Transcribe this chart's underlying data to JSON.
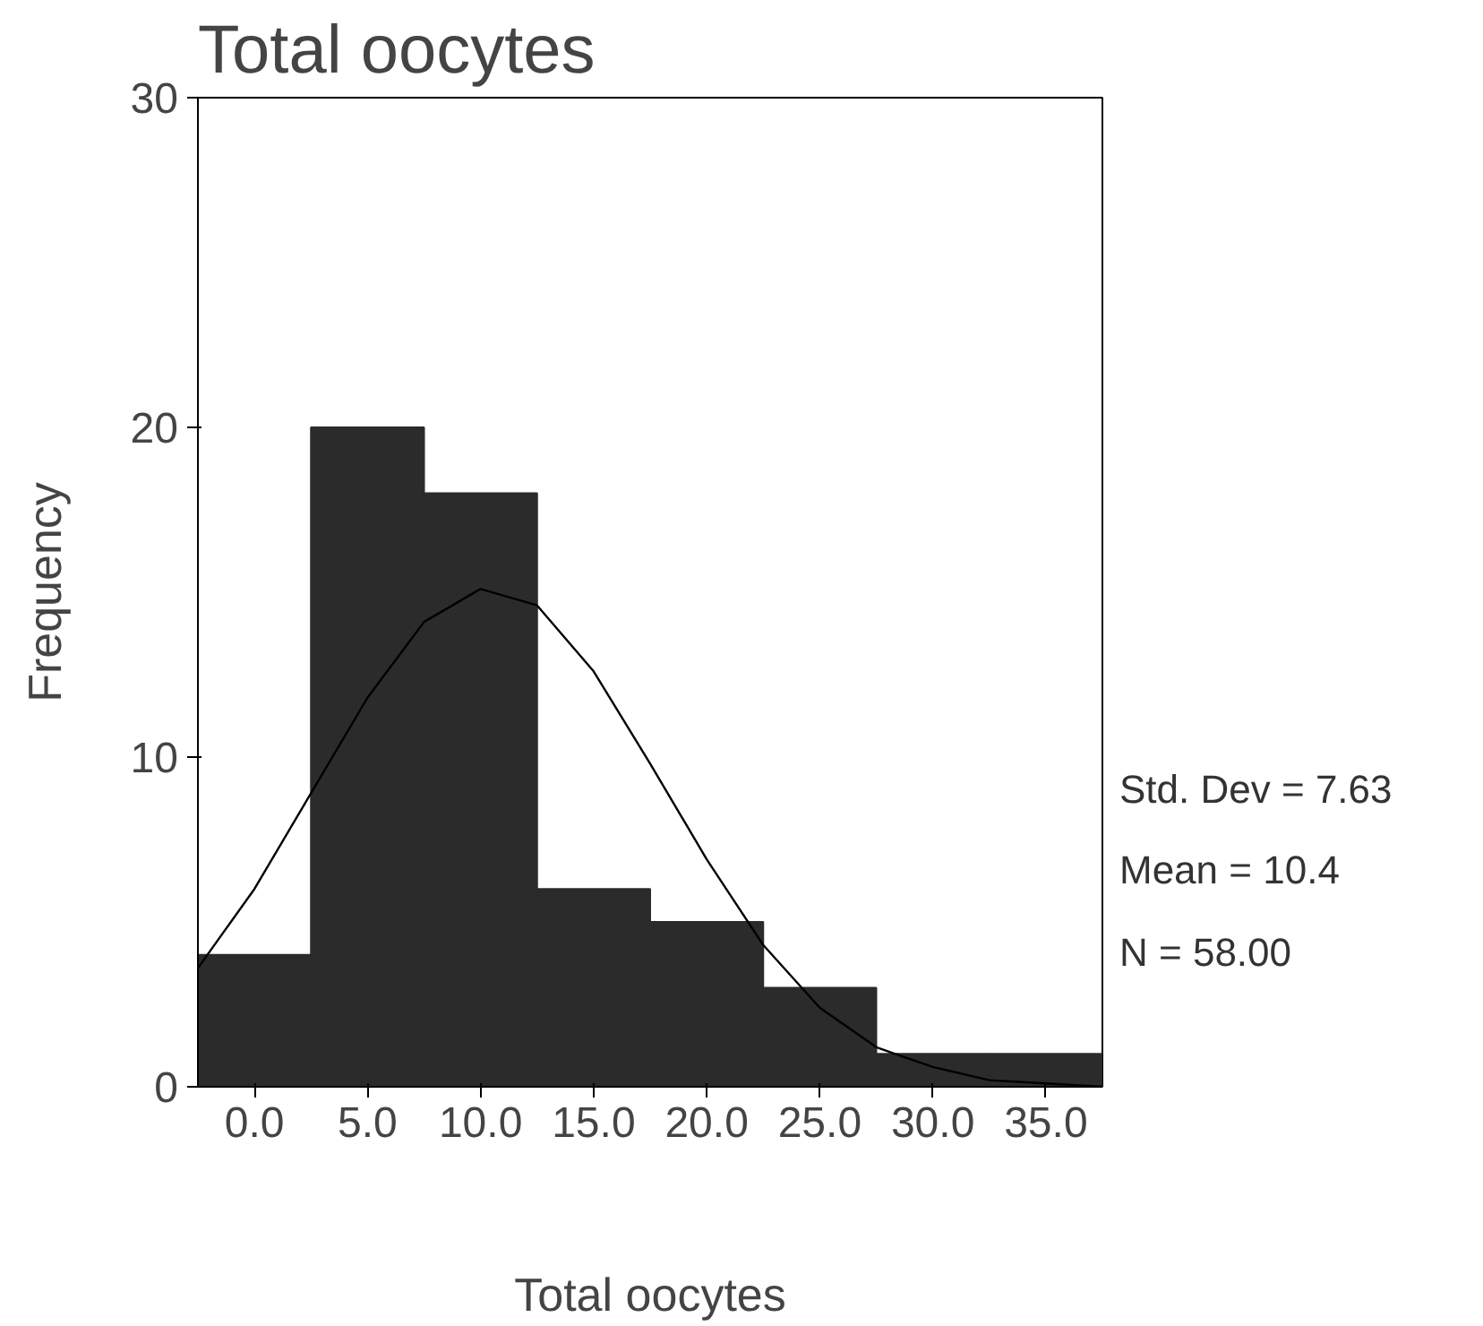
{
  "chart_data": {
    "type": "histogram",
    "title": "Total oocytes",
    "xlabel": "Total oocytes",
    "ylabel": "Frequency",
    "series": [
      {
        "color": "#2b2b2b",
        "bins": [
          -2.5,
          2.5,
          7.5,
          12.5,
          17.5,
          22.5,
          27.5,
          32.5,
          37.5
        ],
        "values": [
          4,
          20,
          18,
          6,
          5,
          3,
          1,
          1
        ]
      },
      {
        "type": "line",
        "color": "#000000",
        "x": [
          -2.5,
          0,
          2.5,
          5,
          7.5,
          10,
          12.5,
          15,
          17.5,
          20,
          22.5,
          25,
          27.5,
          30,
          32.5,
          35,
          37.5
        ],
        "values": [
          3.6,
          6.0,
          8.9,
          11.8,
          14.1,
          15.1,
          14.6,
          12.6,
          9.8,
          6.9,
          4.3,
          2.4,
          1.2,
          0.6,
          0.2,
          0.1,
          0.0
        ]
      }
    ],
    "xlim": [
      -2.5,
      37.5
    ],
    "xticks": [
      {
        "value": 0,
        "label": "0.0"
      },
      {
        "value": 5,
        "label": "5.0"
      },
      {
        "value": 10,
        "label": "10.0"
      },
      {
        "value": 15,
        "label": "15.0"
      },
      {
        "value": 20,
        "label": "20.0"
      },
      {
        "value": 25,
        "label": "25.0"
      },
      {
        "value": 30,
        "label": "30.0"
      },
      {
        "value": 35,
        "label": "35.0"
      }
    ],
    "ylim": [
      0,
      30
    ],
    "yticks": [
      0,
      10,
      20,
      30
    ],
    "grid": false,
    "annotations": [
      "Std. Dev = 7.63",
      "Mean = 10.4",
      "N = 58.00"
    ]
  }
}
